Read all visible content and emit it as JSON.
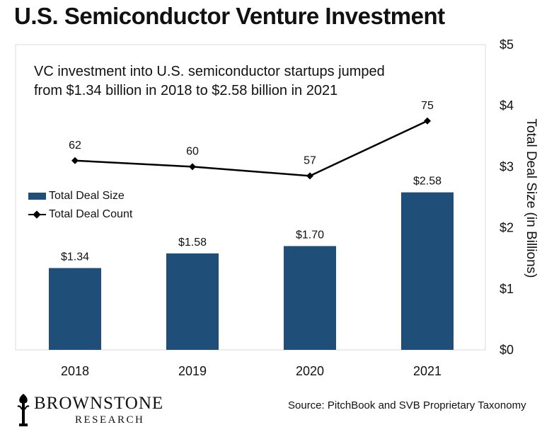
{
  "chart_data": {
    "type": "bar",
    "title": "U.S. Semiconductor Venture Investment",
    "subtitle": "VC investment into U.S. semiconductor startups jumped\nfrom $1.34 billion in 2018 to $2.58 billion in 2021",
    "categories": [
      "2018",
      "2019",
      "2020",
      "2021"
    ],
    "series": [
      {
        "name": "Total Deal Size",
        "type": "bar",
        "axis": "right",
        "color": "#1f4e79",
        "values": [
          1.34,
          1.58,
          1.7,
          2.58
        ],
        "labels": [
          "$1.34",
          "$1.58",
          "$1.70",
          "$2.58"
        ]
      },
      {
        "name": "Total Deal Count",
        "type": "line",
        "marker": "diamond",
        "color": "#000000",
        "values": [
          62,
          60,
          57,
          75
        ],
        "labels": [
          "62",
          "60",
          "57",
          "75"
        ]
      }
    ],
    "ylabel": "Total Deal Size (in Billions)",
    "ylim": [
      0,
      5
    ],
    "y_ticks": [
      "$0",
      "$1",
      "$2",
      "$3",
      "$4",
      "$5"
    ],
    "y_axis_side": "right",
    "line_value_range_shown": [
      0,
      100
    ],
    "grid": false,
    "legend_position": "left"
  },
  "footer": {
    "logo_name": "BROWNSTONE",
    "logo_sub": "RESEARCH",
    "source": "Source: PitchBook and SVB Proprietary Taxonomy"
  }
}
